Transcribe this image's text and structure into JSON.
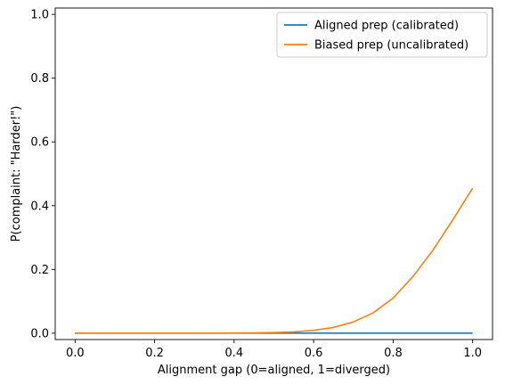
{
  "chart_data": {
    "type": "line",
    "xlabel": "Alignment gap (0=aligned, 1=diverged)",
    "ylabel": "P(complaint: \"Harder!\")",
    "xlim": [
      -0.05,
      1.05
    ],
    "ylim": [
      -0.02,
      1.02
    ],
    "x_ticks": [
      0.0,
      0.2,
      0.4,
      0.6,
      0.8,
      1.0
    ],
    "x_tick_labels": [
      "0.0",
      "0.2",
      "0.4",
      "0.6",
      "0.8",
      "1.0"
    ],
    "y_ticks": [
      0.0,
      0.2,
      0.4,
      0.6,
      0.8,
      1.0
    ],
    "y_tick_labels": [
      "0.0",
      "0.2",
      "0.4",
      "0.6",
      "0.8",
      "1.0"
    ],
    "grid": false,
    "legend_position": "top-right",
    "x": [
      0.0,
      0.05,
      0.1,
      0.15,
      0.2,
      0.25,
      0.3,
      0.35,
      0.4,
      0.45,
      0.5,
      0.55,
      0.6,
      0.65,
      0.7,
      0.75,
      0.8,
      0.85,
      0.9,
      0.95,
      1.0
    ],
    "series": [
      {
        "name": "Aligned prep (calibrated)",
        "color": "#1f77b4",
        "values": [
          0,
          0,
          0,
          0,
          0,
          0,
          0,
          0,
          0,
          0,
          0,
          0,
          0,
          0,
          0,
          0,
          0,
          0,
          0,
          0,
          0
        ]
      },
      {
        "name": "Biased prep (uncalibrated)",
        "color": "#ff7f0e",
        "values": [
          0,
          0,
          0,
          0,
          0,
          0,
          0,
          0,
          0.0005,
          0.001,
          0.002,
          0.004,
          0.009,
          0.018,
          0.035,
          0.064,
          0.11,
          0.178,
          0.26,
          0.355,
          0.455
        ]
      }
    ]
  }
}
